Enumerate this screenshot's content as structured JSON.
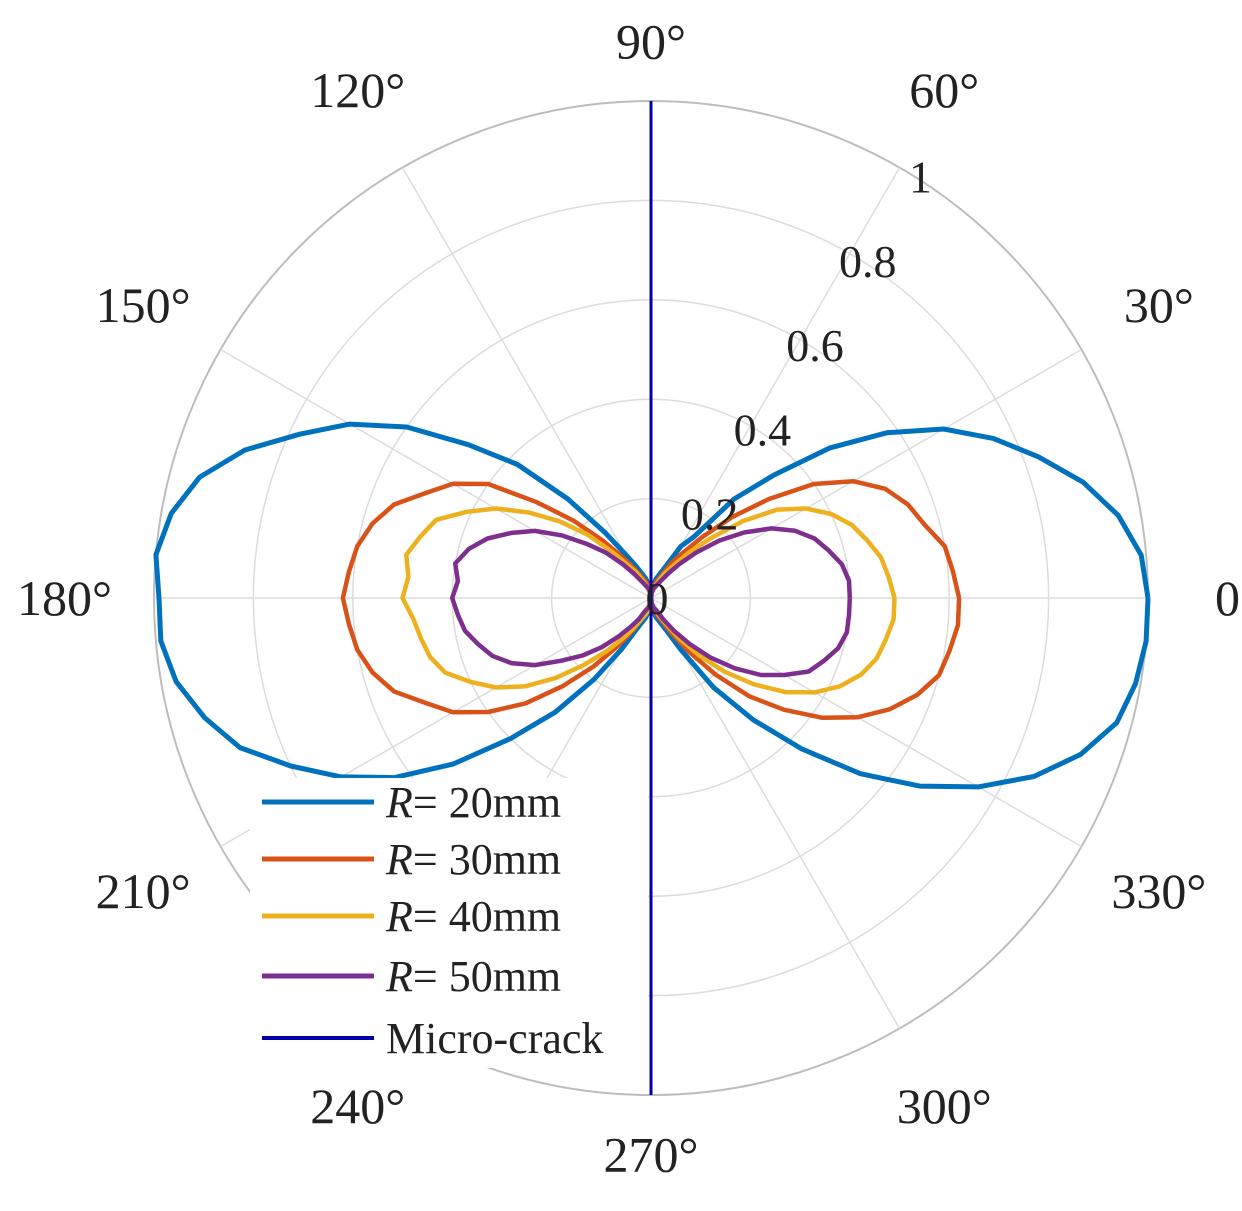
{
  "chart_data": {
    "type": "polar-line",
    "title": "",
    "angle_unit": "degrees",
    "r_range": [
      0,
      1
    ],
    "r_ticks": [
      "0",
      "0.2",
      "0.4",
      "0.6",
      "0.8",
      "1"
    ],
    "r_tick_values": [
      0,
      0.2,
      0.4,
      0.6,
      0.8,
      1
    ],
    "r_tick_angle_deg": 58,
    "theta_ticks": [
      "0°",
      "30°",
      "60°",
      "90°",
      "120°",
      "150°",
      "180°",
      "210°",
      "240°",
      "270°",
      "300°",
      "330°"
    ],
    "theta_tick_values": [
      0,
      30,
      60,
      90,
      120,
      150,
      180,
      210,
      240,
      270,
      300,
      330
    ],
    "grid": true,
    "legend_position": "bottom-left",
    "series": [
      {
        "name_prefix": "R",
        "name_suffix": "= 20mm",
        "color": "#0072BD",
        "theta_deg": [
          0,
          5,
          10,
          15,
          20,
          25,
          30,
          35,
          40,
          45,
          50,
          55,
          60,
          65,
          75,
          85,
          90,
          95,
          105,
          115,
          120,
          125,
          130,
          135,
          140,
          145,
          150,
          155,
          160,
          165,
          170,
          175,
          180,
          185,
          190,
          195,
          200,
          205,
          210,
          215,
          220,
          225,
          230,
          235,
          240,
          245,
          255,
          265,
          270,
          275,
          285,
          295,
          300,
          305,
          310,
          315,
          320,
          325,
          330,
          335,
          340,
          345,
          350,
          355,
          360
        ],
        "r": [
          1.0,
          0.99,
          0.955,
          0.9,
          0.83,
          0.76,
          0.68,
          0.58,
          0.47,
          0.35,
          0.26,
          0.15,
          0.12,
          0.07,
          0.04,
          0.02,
          0.0,
          0.02,
          0.04,
          0.07,
          0.1,
          0.16,
          0.26,
          0.38,
          0.48,
          0.6,
          0.7,
          0.78,
          0.87,
          0.94,
          0.98,
          1.0,
          0.99,
          0.99,
          0.97,
          0.93,
          0.88,
          0.8,
          0.72,
          0.63,
          0.52,
          0.4,
          0.3,
          0.2,
          0.12,
          0.07,
          0.04,
          0.02,
          0.0,
          0.02,
          0.04,
          0.07,
          0.12,
          0.22,
          0.32,
          0.43,
          0.55,
          0.66,
          0.76,
          0.85,
          0.92,
          0.97,
          0.99,
          1.0,
          1.0
        ]
      },
      {
        "name_prefix": "R",
        "name_suffix": "= 30mm",
        "color": "#D95319",
        "theta_deg": [
          0,
          5,
          10,
          15,
          20,
          25,
          30,
          35,
          40,
          45,
          50,
          55,
          60,
          65,
          75,
          85,
          90,
          95,
          105,
          115,
          120,
          125,
          130,
          135,
          140,
          145,
          150,
          155,
          160,
          165,
          170,
          175,
          180,
          185,
          190,
          195,
          200,
          205,
          210,
          215,
          220,
          225,
          230,
          235,
          240,
          245,
          255,
          265,
          270,
          275,
          285,
          295,
          300,
          305,
          310,
          315,
          320,
          325,
          330,
          335,
          340,
          345,
          350,
          355,
          360
        ],
        "r": [
          0.62,
          0.61,
          0.6,
          0.57,
          0.55,
          0.52,
          0.47,
          0.4,
          0.31,
          0.23,
          0.16,
          0.11,
          0.08,
          0.05,
          0.03,
          0.01,
          0.0,
          0.01,
          0.03,
          0.05,
          0.07,
          0.1,
          0.15,
          0.22,
          0.3,
          0.4,
          0.46,
          0.5,
          0.55,
          0.58,
          0.6,
          0.61,
          0.62,
          0.61,
          0.6,
          0.58,
          0.55,
          0.5,
          0.46,
          0.4,
          0.33,
          0.25,
          0.18,
          0.12,
          0.08,
          0.05,
          0.03,
          0.01,
          0.0,
          0.01,
          0.03,
          0.05,
          0.08,
          0.13,
          0.2,
          0.28,
          0.35,
          0.42,
          0.48,
          0.53,
          0.57,
          0.6,
          0.61,
          0.62,
          0.62
        ]
      },
      {
        "name_prefix": "R",
        "name_suffix": "= 40mm",
        "color": "#EDB120",
        "theta_deg": [
          0,
          5,
          10,
          15,
          20,
          25,
          30,
          35,
          40,
          45,
          50,
          55,
          60,
          65,
          75,
          85,
          90,
          95,
          105,
          115,
          120,
          125,
          130,
          135,
          140,
          145,
          150,
          155,
          160,
          165,
          170,
          175,
          180,
          185,
          190,
          195,
          200,
          205,
          210,
          215,
          220,
          225,
          230,
          235,
          240,
          245,
          255,
          265,
          270,
          275,
          285,
          295,
          300,
          305,
          310,
          315,
          320,
          325,
          330,
          335,
          340,
          345,
          350,
          355,
          360
        ],
        "r": [
          0.49,
          0.48,
          0.47,
          0.45,
          0.43,
          0.4,
          0.36,
          0.31,
          0.24,
          0.17,
          0.12,
          0.08,
          0.06,
          0.04,
          0.02,
          0.01,
          0.0,
          0.01,
          0.02,
          0.04,
          0.06,
          0.08,
          0.12,
          0.18,
          0.24,
          0.3,
          0.36,
          0.41,
          0.46,
          0.48,
          0.5,
          0.49,
          0.5,
          0.48,
          0.47,
          0.46,
          0.44,
          0.4,
          0.36,
          0.31,
          0.25,
          0.19,
          0.14,
          0.1,
          0.07,
          0.05,
          0.03,
          0.01,
          0.0,
          0.01,
          0.02,
          0.04,
          0.06,
          0.1,
          0.15,
          0.21,
          0.27,
          0.33,
          0.38,
          0.42,
          0.45,
          0.47,
          0.48,
          0.49,
          0.49
        ]
      },
      {
        "name_prefix": "R",
        "name_suffix": "= 50mm",
        "color": "#7E2F8E",
        "theta_deg": [
          0,
          5,
          10,
          15,
          20,
          25,
          30,
          35,
          40,
          45,
          50,
          55,
          60,
          65,
          75,
          85,
          90,
          95,
          105,
          115,
          120,
          125,
          130,
          135,
          140,
          145,
          150,
          155,
          160,
          165,
          170,
          175,
          180,
          185,
          190,
          195,
          200,
          205,
          210,
          215,
          220,
          225,
          230,
          235,
          240,
          245,
          255,
          265,
          270,
          275,
          285,
          295,
          300,
          305,
          310,
          315,
          320,
          325,
          330,
          335,
          340,
          345,
          350,
          355,
          360
        ],
        "r": [
          0.4,
          0.4,
          0.39,
          0.37,
          0.35,
          0.32,
          0.28,
          0.23,
          0.18,
          0.13,
          0.09,
          0.06,
          0.04,
          0.03,
          0.02,
          0.01,
          0.0,
          0.01,
          0.02,
          0.03,
          0.04,
          0.06,
          0.09,
          0.13,
          0.17,
          0.22,
          0.27,
          0.31,
          0.35,
          0.38,
          0.4,
          0.39,
          0.4,
          0.39,
          0.38,
          0.36,
          0.34,
          0.31,
          0.27,
          0.22,
          0.18,
          0.14,
          0.1,
          0.07,
          0.05,
          0.03,
          0.02,
          0.01,
          0.0,
          0.01,
          0.02,
          0.03,
          0.05,
          0.08,
          0.12,
          0.17,
          0.22,
          0.27,
          0.31,
          0.35,
          0.37,
          0.39,
          0.4,
          0.4,
          0.4
        ]
      }
    ],
    "reference_line": {
      "name": "Micro-crack",
      "color": "#0000A8",
      "theta_deg": [
        90,
        270
      ],
      "r": 1
    }
  }
}
